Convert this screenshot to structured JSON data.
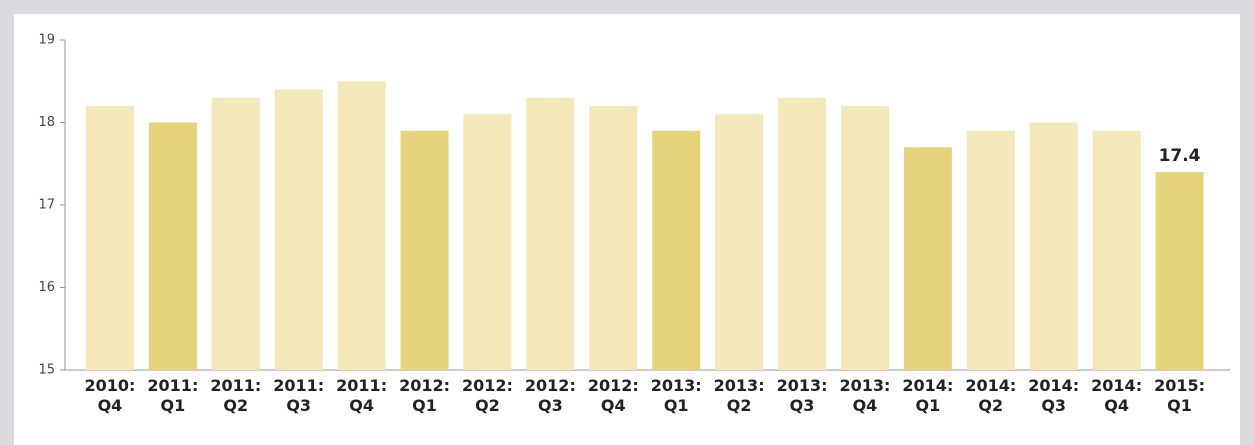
{
  "chart_data": {
    "type": "bar",
    "categories": [
      "2010:\nQ4",
      "2011:\nQ1",
      "2011:\nQ2",
      "2011:\nQ3",
      "2011:\nQ4",
      "2012:\nQ1",
      "2012:\nQ2",
      "2012:\nQ3",
      "2012:\nQ4",
      "2013:\nQ1",
      "2013:\nQ2",
      "2013:\nQ3",
      "2013:\nQ4",
      "2014:\nQ1",
      "2014:\nQ2",
      "2014:\nQ3",
      "2014:\nQ4",
      "2015:\nQ1"
    ],
    "values": [
      18.2,
      18.0,
      18.3,
      18.4,
      18.5,
      17.9,
      18.1,
      18.3,
      18.2,
      17.9,
      18.1,
      18.3,
      18.2,
      17.7,
      17.9,
      18.0,
      17.9,
      17.4
    ],
    "value_labels": [
      null,
      null,
      null,
      null,
      null,
      null,
      null,
      null,
      null,
      null,
      null,
      null,
      null,
      null,
      null,
      null,
      null,
      "17.4"
    ],
    "colors": [
      "#f2e8b9",
      "#e6d47d",
      "#f2e8b9",
      "#f2e8b9",
      "#f2e8b9",
      "#e6d47d",
      "#f2e8b9",
      "#f2e8b9",
      "#f2e8b9",
      "#e6d47d",
      "#f2e8b9",
      "#f2e8b9",
      "#f2e8b9",
      "#e6d47d",
      "#f2e8b9",
      "#f2e8b9",
      "#f2e8b9",
      "#e6d47d"
    ],
    "ylim": [
      15,
      19
    ],
    "yticks": [
      15,
      16,
      17,
      18,
      19
    ],
    "grid": false
  }
}
